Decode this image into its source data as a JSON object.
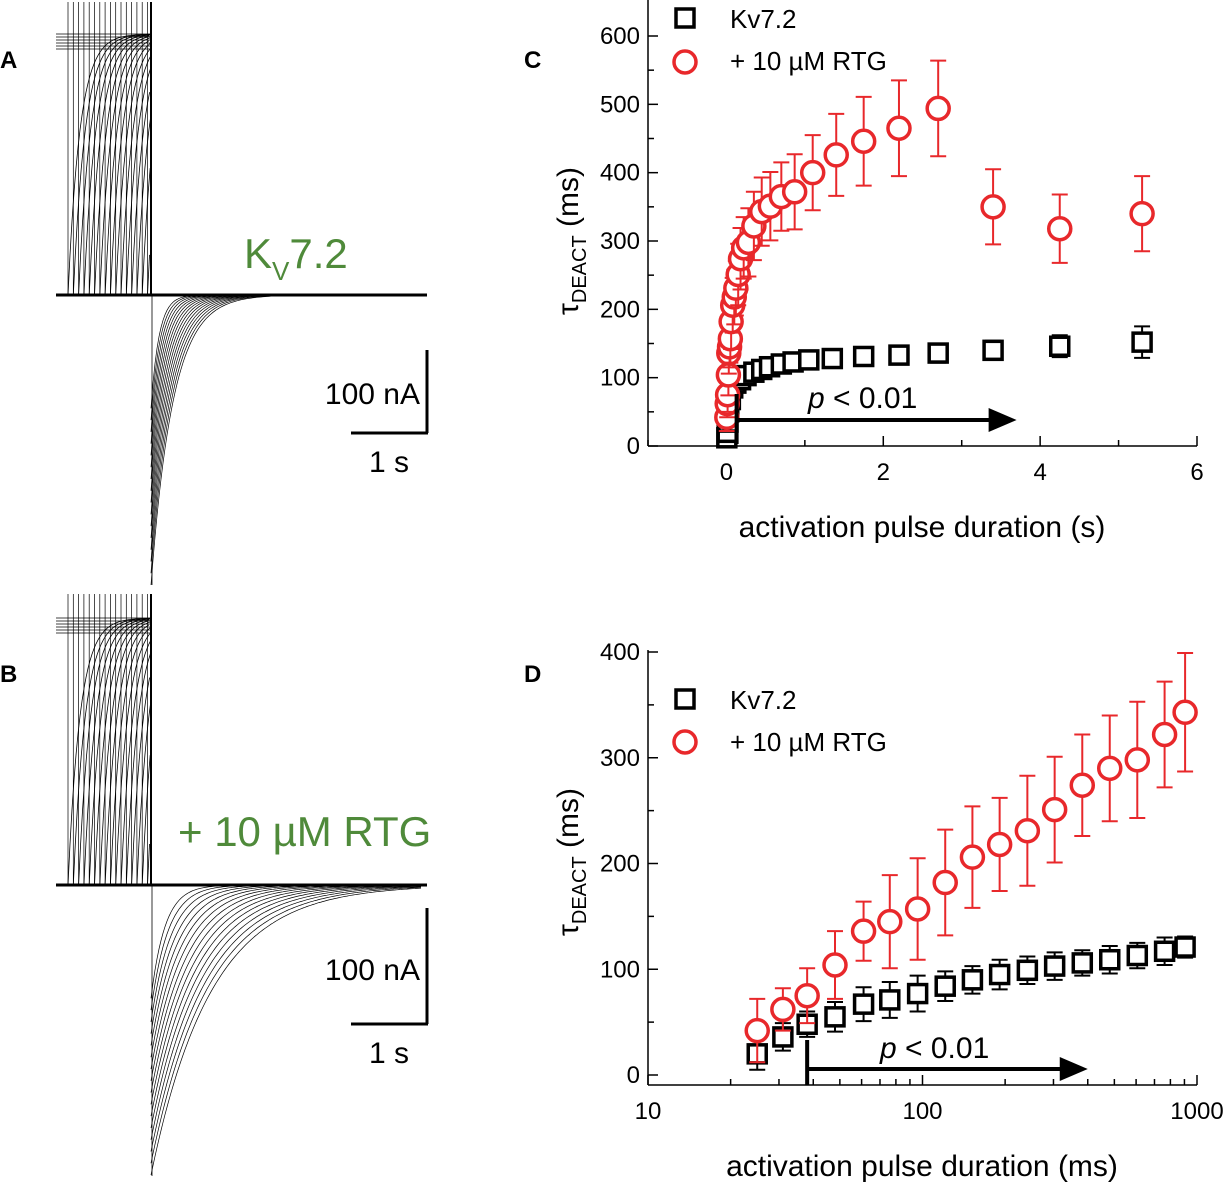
{
  "figure": {
    "panel_labels": {
      "A": "A",
      "B": "B",
      "C": "C",
      "D": "D"
    },
    "trace_A": {
      "title_main": "K",
      "title_sub": "V",
      "title_rest": "7.2",
      "scale_current": "100 nA",
      "scale_time": "1 s"
    },
    "trace_B": {
      "title": "+ 10 µM RTG",
      "scale_current": "100 nA",
      "scale_time": "1 s"
    },
    "colors": {
      "control": "#000000",
      "rtg": "#e8282b",
      "title_green": "#4f8a3a"
    }
  },
  "chart_data": [
    {
      "id": "C",
      "type": "scatter",
      "xlabel": "activation pulse duration (s)",
      "ylabel_main": "τ",
      "ylabel_sub": "DEACT",
      "ylabel_rest": " (ms)",
      "xscale": "linear",
      "xlim": [
        -1,
        6
      ],
      "ylim": [
        0,
        650
      ],
      "xticks": [
        0,
        2,
        4,
        6
      ],
      "xtick_labels": [
        "0",
        "2",
        "4",
        "6"
      ],
      "yticks": [
        0,
        100,
        200,
        300,
        400,
        500,
        600
      ],
      "ytick_labels": [
        "0",
        "100",
        "200",
        "300",
        "400",
        "500",
        "600"
      ],
      "legend_position": "top-left",
      "annotation": {
        "p": "p",
        "text": " < 0.01",
        "arrow_from_x": 0.13,
        "arrow_to_x": 3.7,
        "arrow_y": 40
      },
      "series": [
        {
          "name": "Kv7.2",
          "marker": "square",
          "color": "#000000",
          "x": [
            0.005,
            0.01,
            0.02,
            0.03,
            0.05,
            0.08,
            0.12,
            0.18,
            0.25,
            0.35,
            0.45,
            0.55,
            0.7,
            0.85,
            1.05,
            1.35,
            1.75,
            2.2,
            2.7,
            3.4,
            4.25,
            5.3
          ],
          "y": [
            12,
            20,
            35,
            50,
            68,
            85,
            92,
            97,
            103,
            108,
            112,
            116,
            120,
            123,
            126,
            128,
            131,
            133,
            136,
            140,
            146,
            152
          ],
          "err": [
            4,
            5,
            6,
            7,
            8,
            9,
            10,
            10,
            10,
            10,
            11,
            11,
            11,
            11,
            12,
            12,
            12,
            13,
            14,
            14,
            16,
            23
          ]
        },
        {
          "name": "+ 10 µM RTG",
          "marker": "circle",
          "color": "#e8282b",
          "x": [
            0.005,
            0.01,
            0.015,
            0.025,
            0.03,
            0.04,
            0.05,
            0.06,
            0.08,
            0.1,
            0.12,
            0.15,
            0.18,
            0.22,
            0.28,
            0.35,
            0.45,
            0.56,
            0.7,
            0.87,
            1.1,
            1.4,
            1.75,
            2.2,
            2.7,
            3.4,
            4.25,
            5.3
          ],
          "y": [
            42,
            62,
            75,
            104,
            136,
            145,
            157,
            182,
            206,
            218,
            231,
            251,
            274,
            290,
            298,
            322,
            343,
            351,
            365,
            372,
            400,
            426,
            446,
            465,
            494,
            350,
            318,
            340
          ],
          "err": [
            20,
            20,
            25,
            30,
            30,
            30,
            35,
            40,
            40,
            40,
            40,
            45,
            45,
            45,
            50,
            50,
            50,
            50,
            50,
            55,
            55,
            60,
            65,
            70,
            70,
            55,
            50,
            55
          ]
        }
      ]
    },
    {
      "id": "D",
      "type": "scatter",
      "xlabel": "activation pulse duration (ms)",
      "ylabel_main": "τ",
      "ylabel_sub": "DEACT",
      "ylabel_rest": " (ms)",
      "xscale": "log",
      "xlim": [
        10,
        1000
      ],
      "ylim": [
        0,
        410
      ],
      "xticks": [
        10,
        100,
        1000
      ],
      "xtick_labels": [
        "10",
        "100",
        "1000"
      ],
      "yticks": [
        0,
        100,
        200,
        300,
        400
      ],
      "ytick_labels": [
        "0",
        "100",
        "200",
        "300",
        "400"
      ],
      "legend_position": "top-left",
      "annotation": {
        "p": "p",
        "text": " < 0.01",
        "arrow_from_x": 38,
        "arrow_to_x": 400,
        "arrow_y": 0
      },
      "series": [
        {
          "name": "Kv7.2",
          "marker": "square",
          "color": "#000000",
          "x": [
            25,
            31,
            38,
            48,
            61,
            76,
            96,
            121,
            152,
            191,
            241,
            303,
            382,
            481,
            606,
            762,
            905
          ],
          "y": [
            20,
            36,
            48,
            55,
            67,
            71,
            77,
            84,
            90,
            95,
            99,
            103,
            106,
            109,
            113,
            117,
            121
          ],
          "err": [
            15,
            13,
            12,
            14,
            16,
            17,
            17,
            14,
            13,
            14,
            13,
            13,
            12,
            13,
            12,
            13,
            10
          ]
        },
        {
          "name": "+ 10 µM RTG",
          "marker": "circle",
          "color": "#e8282b",
          "x": [
            25,
            31,
            38,
            48,
            61,
            76,
            96,
            121,
            152,
            191,
            241,
            303,
            382,
            481,
            606,
            762,
            905
          ],
          "y": [
            42,
            62,
            75,
            104,
            136,
            145,
            157,
            182,
            206,
            218,
            231,
            251,
            274,
            290,
            298,
            322,
            343
          ],
          "err": [
            30,
            20,
            26,
            32,
            28,
            44,
            48,
            50,
            48,
            44,
            52,
            50,
            48,
            50,
            55,
            50,
            56
          ]
        }
      ]
    }
  ]
}
